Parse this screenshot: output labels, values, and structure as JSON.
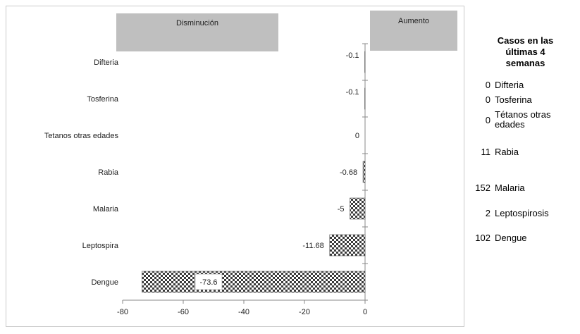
{
  "chart_data": {
    "type": "bar",
    "orientation": "horizontal",
    "categories": [
      "Difteria",
      "Tosferina",
      "Tetanos otras edades",
      "Rabia",
      "Malaria",
      "Leptospira",
      "Dengue"
    ],
    "values": [
      -0.1,
      -0.1,
      0,
      -0.68,
      -5,
      -11.68,
      -73.6
    ],
    "value_labels": [
      "-0.1",
      "-0.1",
      "0",
      "-0.68",
      "-5",
      "-11.68",
      "-73.6"
    ],
    "xlim": [
      -80,
      0
    ],
    "x_ticks": [
      -80,
      -60,
      -40,
      -20,
      0
    ],
    "x_tick_labels": [
      "-80",
      "-60",
      "-40",
      "-20",
      "0"
    ],
    "legend": {
      "decrease_label": "Disminución",
      "increase_label": "Aumento",
      "box_color": "#bfbfbf"
    },
    "bar_pattern": "checker-dark",
    "grid": false
  },
  "side_panel": {
    "title_line1": "Casos en las",
    "title_line2": "últimas 4",
    "title_line3": "semanas",
    "rows": [
      {
        "count": "0",
        "name": "Difteria"
      },
      {
        "count": "0",
        "name": "Tosferina"
      },
      {
        "count": "0",
        "name": "Tétanos otras edades"
      },
      {
        "count": "11",
        "name": "Rabia"
      },
      {
        "count": "152",
        "name": "Malaria"
      },
      {
        "count": "2",
        "name": "Leptospirosis"
      },
      {
        "count": "102",
        "name": "Dengue"
      }
    ]
  }
}
